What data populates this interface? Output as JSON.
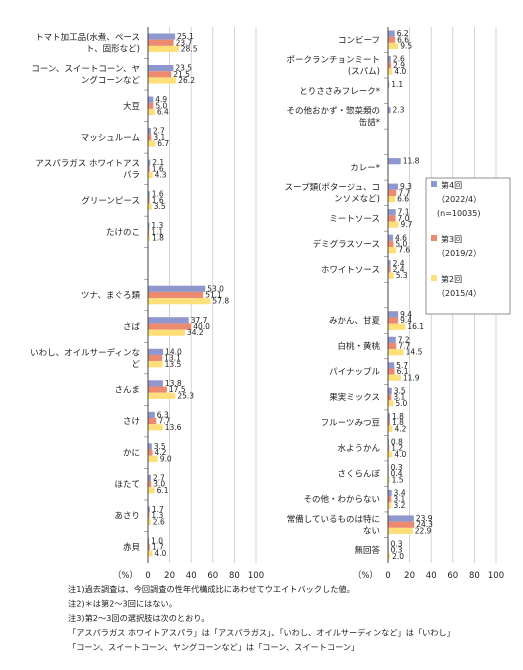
{
  "chart_data": [
    {
      "type": "bar",
      "orientation": "horizontal",
      "xlim": [
        0,
        100
      ],
      "ticks": [
        "0",
        "20",
        "40",
        "60",
        "80",
        "100"
      ],
      "axis_unit": "（%）",
      "categories": [
        {
          "label": "トマト加工品(水煮、ペースト、固形など)",
          "lines": [
            "トマト加工品(水煮、ペース",
            "ト、固形など)"
          ],
          "values": [
            25.1,
            23.7,
            28.5
          ]
        },
        {
          "label": "コーン、スイートコーン、ヤングコーンなど",
          "lines": [
            "コーン、スイートコーン、ヤ",
            "ングコーンなど"
          ],
          "values": [
            23.5,
            21.5,
            26.2
          ]
        },
        {
          "label": "大豆",
          "lines": [
            "大豆"
          ],
          "values": [
            4.9,
            5.0,
            6.4
          ]
        },
        {
          "label": "マッシュルーム",
          "lines": [
            "マッシュルーム"
          ],
          "values": [
            2.7,
            3.1,
            6.7
          ]
        },
        {
          "label": "アスパラガス ホワイトアスパラ",
          "lines": [
            "アスパラガス ホワイトアス",
            "パラ"
          ],
          "values": [
            2.1,
            1.6,
            4.3
          ]
        },
        {
          "label": "グリーンピース",
          "lines": [
            "グリーンピース"
          ],
          "values": [
            1.6,
            1.6,
            3.5
          ]
        },
        {
          "label": "たけのこ",
          "lines": [
            "たけのこ"
          ],
          "values": [
            1.3,
            1.1,
            1.8
          ]
        },
        {
          "label": "",
          "lines": [],
          "values": [
            null,
            null,
            null
          ]
        },
        {
          "label": "ツナ、まぐろ類",
          "lines": [
            "ツナ、まぐろ類"
          ],
          "values": [
            53.0,
            51.1,
            57.8
          ]
        },
        {
          "label": "さば",
          "lines": [
            "さば"
          ],
          "values": [
            37.7,
            40.0,
            34.2
          ]
        },
        {
          "label": "いわし、オイルサーディンなど",
          "lines": [
            "いわし、オイルサーディンな",
            "ど"
          ],
          "values": [
            14.0,
            13.1,
            13.5
          ]
        },
        {
          "label": "さんま",
          "lines": [
            "さんま"
          ],
          "values": [
            13.8,
            17.5,
            25.3
          ]
        },
        {
          "label": "さけ",
          "lines": [
            "さけ"
          ],
          "values": [
            6.3,
            7.7,
            13.6
          ]
        },
        {
          "label": "かに",
          "lines": [
            "かに"
          ],
          "values": [
            3.5,
            4.2,
            9.0
          ]
        },
        {
          "label": "ほたて",
          "lines": [
            "ほたて"
          ],
          "values": [
            2.7,
            3.0,
            6.1
          ]
        },
        {
          "label": "あさり",
          "lines": [
            "あさり"
          ],
          "values": [
            1.7,
            1.3,
            2.6
          ]
        },
        {
          "label": "赤貝",
          "lines": [
            "赤貝"
          ],
          "values": [
            1.0,
            1.7,
            4.0
          ]
        }
      ]
    },
    {
      "type": "bar",
      "orientation": "horizontal",
      "xlim": [
        0,
        100
      ],
      "ticks": [
        "0",
        "20",
        "40",
        "60",
        "80",
        "100"
      ],
      "axis_unit": "（%）",
      "categories": [
        {
          "label": "コンビーフ",
          "lines": [
            "コンビーフ"
          ],
          "values": [
            6.2,
            6.6,
            9.5
          ]
        },
        {
          "label": "ポークランチョンミート(スパム)",
          "lines": [
            "ポークランチョンミート",
            "(スパム)"
          ],
          "values": [
            2.6,
            2.9,
            4.0
          ]
        },
        {
          "label": "とりささみフレーク*",
          "lines": [
            "とりささみフレーク*"
          ],
          "values": [
            1.1,
            null,
            null
          ]
        },
        {
          "label": "その他おかず・惣菜類の缶詰*",
          "lines": [
            "その他おかず・惣菜類の",
            "缶詰*"
          ],
          "values": [
            2.3,
            null,
            null
          ]
        },
        {
          "label": "",
          "lines": [],
          "values": [
            null,
            null,
            null
          ]
        },
        {
          "label": "カレー*",
          "lines": [
            "カレー*"
          ],
          "values": [
            11.8,
            null,
            null
          ]
        },
        {
          "label": "スープ類(ポタージュ、コンソメなど)",
          "lines": [
            "スープ類(ポタージュ、コ",
            "ンソメなど)"
          ],
          "values": [
            9.3,
            7.7,
            6.6
          ]
        },
        {
          "label": "ミートソース",
          "lines": [
            "ミートソース"
          ],
          "values": [
            7.1,
            7.0,
            9.7
          ]
        },
        {
          "label": "デミグラスソース",
          "lines": [
            "デミグラスソース"
          ],
          "values": [
            4.6,
            5.0,
            7.6
          ]
        },
        {
          "label": "ホワイトソース",
          "lines": [
            "ホワイトソース"
          ],
          "values": [
            2.4,
            2.4,
            5.3
          ]
        },
        {
          "label": "",
          "lines": [],
          "values": [
            null,
            null,
            null
          ]
        },
        {
          "label": "みかん、甘夏",
          "lines": [
            "みかん、甘夏"
          ],
          "values": [
            9.4,
            9.4,
            16.1
          ]
        },
        {
          "label": "白桃・黄桃",
          "lines": [
            "白桃・黄桃"
          ],
          "values": [
            7.2,
            7.7,
            14.5
          ]
        },
        {
          "label": "パイナップル",
          "lines": [
            "パイナップル"
          ],
          "values": [
            5.7,
            6.1,
            11.9
          ]
        },
        {
          "label": "果実ミックス",
          "lines": [
            "果実ミックス"
          ],
          "values": [
            3.5,
            3.1,
            5.0
          ]
        },
        {
          "label": "フルーツみつ豆",
          "lines": [
            "フルーツみつ豆"
          ],
          "values": [
            1.8,
            1.8,
            4.2
          ]
        },
        {
          "label": "水ようかん",
          "lines": [
            "水ようかん"
          ],
          "values": [
            0.8,
            1.2,
            4.0
          ]
        },
        {
          "label": "さくらんぼ",
          "lines": [
            "さくらんぼ"
          ],
          "values": [
            0.3,
            0.4,
            1.5
          ]
        },
        {
          "label": "その他・わからない",
          "lines": [
            "その他・わからない"
          ],
          "values": [
            3.4,
            3.1,
            3.2
          ]
        },
        {
          "label": "常備しているものは特にない",
          "lines": [
            "常備しているものは特に",
            "ない"
          ],
          "values": [
            23.9,
            24.3,
            22.9
          ]
        },
        {
          "label": "無回答",
          "lines": [
            "無回答"
          ],
          "values": [
            0.3,
            0.3,
            2.0
          ]
        }
      ]
    }
  ],
  "legend": [
    {
      "lines": [
        "第4回",
        "（2022/4）",
        "(n=10035)"
      ],
      "color": "#8f97cf"
    },
    {
      "lines": [
        "第3回",
        "（2019/2）"
      ],
      "color": "#ec8a70"
    },
    {
      "lines": [
        "第2回",
        "（2015/4）"
      ],
      "color": "#ffdf7a"
    }
  ],
  "notes": [
    "注1)過去調査は、今回調査の性年代構成比にあわせてウエイトバックした値。",
    "注2)＊は第2～3回にはない。",
    "注3)第2～3回の選択肢は次のとおり。",
    "「アスパラガス ホワイトアスパラ」は「アスパラガス」、「いわし、オイルサーディンなど」は「いわし」",
    "「コーン、スイートコーン、ヤングコーンなど」は「コーン、スイートコーン」"
  ]
}
